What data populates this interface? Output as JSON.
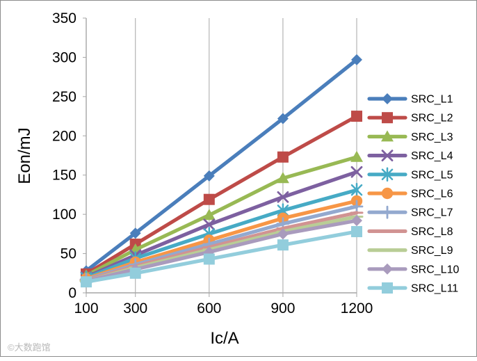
{
  "chart_data": {
    "type": "line",
    "title": "",
    "xlabel": "Ic/A",
    "ylabel": "Eon/mJ",
    "x": [
      100,
      300,
      600,
      900,
      1200
    ],
    "x_tick_labels": [
      "100",
      "300",
      "600",
      "900",
      "1200"
    ],
    "xlim": [
      100,
      1200
    ],
    "ylim": [
      0,
      350
    ],
    "y_ticks": [
      0,
      50,
      100,
      150,
      200,
      250,
      300,
      350
    ],
    "grid": "vertical",
    "legend_position": "right",
    "series": [
      {
        "name": "SRC_L1",
        "color": "#4a7ebb",
        "marker": "diamond",
        "values": [
          28,
          76,
          149,
          222,
          297
        ]
      },
      {
        "name": "SRC_L2",
        "color": "#be4b48",
        "marker": "square",
        "values": [
          24,
          62,
          119,
          173,
          225
        ]
      },
      {
        "name": "SRC_L3",
        "color": "#98b954",
        "marker": "triangle",
        "values": [
          22,
          55,
          99,
          146,
          173
        ]
      },
      {
        "name": "SRC_L4",
        "color": "#7d60a0",
        "marker": "x",
        "values": [
          20,
          48,
          87,
          122,
          154
        ]
      },
      {
        "name": "SRC_L5",
        "color": "#46aac5",
        "marker": "star",
        "values": [
          19,
          44,
          75,
          105,
          131
        ]
      },
      {
        "name": "SRC_L6",
        "color": "#f79646",
        "marker": "circle",
        "values": [
          18,
          39,
          67,
          95,
          117
        ]
      },
      {
        "name": "SRC_L7",
        "color": "#93a9cf",
        "marker": "plus",
        "values": [
          17,
          36,
          62,
          88,
          110
        ]
      },
      {
        "name": "SRC_L8",
        "color": "#d19392",
        "marker": "dash",
        "values": [
          16,
          34,
          58,
          82,
          102
        ]
      },
      {
        "name": "SRC_L9",
        "color": "#b9cd96",
        "marker": "dash",
        "values": [
          15,
          32,
          55,
          78,
          97
        ]
      },
      {
        "name": "SRC_L10",
        "color": "#a99bbd",
        "marker": "diamond",
        "values": [
          15,
          30,
          52,
          75,
          92
        ]
      },
      {
        "name": "SRC_L11",
        "color": "#92cddc",
        "marker": "square",
        "values": [
          14,
          25,
          43,
          61,
          78
        ]
      }
    ]
  },
  "watermark": "©大数跑馆"
}
